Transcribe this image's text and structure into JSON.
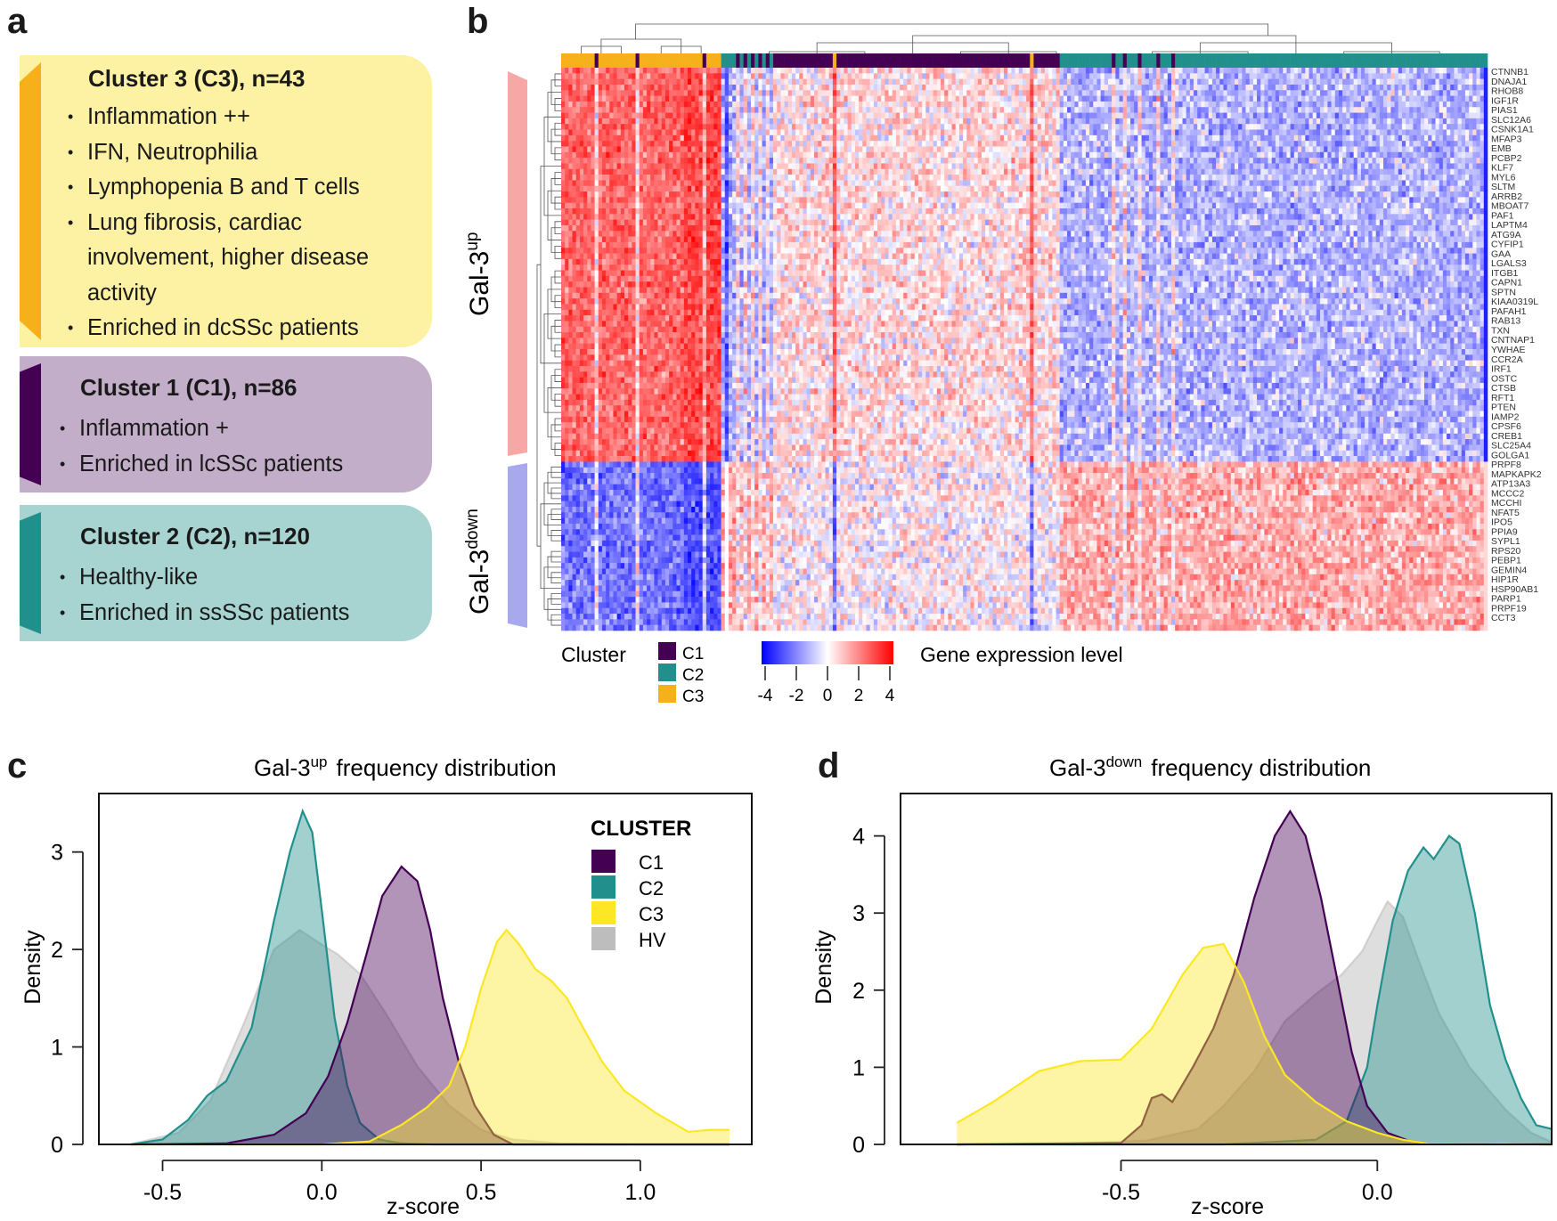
{
  "panel_labels": [
    "a",
    "b",
    "c",
    "d"
  ],
  "colors": {
    "c1": "#440154",
    "c2": "#21908c",
    "c3": "#fde725",
    "hv": "#bdbdbd",
    "card_c3": "#fdf2a4",
    "card_c1": "#c3aec9",
    "card_c2": "#a7d3d1",
    "strip_c3": "#f6b11a",
    "gal_up_bar": "#f7a8a6",
    "gal_down_bar": "#a8a8ef"
  },
  "panel_a": {
    "cards": [
      {
        "title": "Cluster 3 (C3), n=43",
        "lines": [
          {
            "text": "Inflammation ++",
            "bullet": true
          },
          {
            "text": "IFN, Neutrophilia",
            "bullet": true
          },
          {
            "text": "Lymphopenia B and T cells",
            "bullet": true
          },
          {
            "text": "Lung fibrosis, cardiac",
            "bullet": true
          },
          {
            "text": "involvement, higher disease",
            "bullet": false
          },
          {
            "text": "activity",
            "bullet": false
          },
          {
            "text": "Enriched in dcSSc patients",
            "bullet": true
          }
        ]
      },
      {
        "title": "Cluster 1 (C1), n=86",
        "lines": [
          {
            "text": "Inflammation +",
            "bullet": true
          },
          {
            "text": "Enriched in lcSSc patients",
            "bullet": true
          }
        ]
      },
      {
        "title": "Cluster 2 (C2), n=120",
        "lines": [
          {
            "text": "Healthy-like",
            "bullet": true
          },
          {
            "text": "Enriched in ssSSc patients",
            "bullet": true
          }
        ]
      }
    ]
  },
  "panel_b": {
    "gal_up_label": "Gal-3",
    "gal_up_sup": "up",
    "gal_down_label": "Gal-3",
    "gal_down_sup": "down",
    "genes": [
      "CTNNB1",
      "DNAJA1",
      "RHOB8",
      "IGF1R",
      "PIAS1",
      "SLC12A6",
      "CSNK1A1",
      "MFAP3",
      "EMB",
      "PCBP2",
      "KLF7",
      "MYL6",
      "SLTM",
      "ARRB2",
      "MBOAT7",
      "PAF1",
      "LAPTM4",
      "ATG9A",
      "CYFIP1",
      "GAA",
      "LGALS3",
      "ITGB1",
      "CAPN1",
      "SPTN",
      "KIAA0319L",
      "PAFAH1",
      "RAB13",
      "TXN",
      "CNTNAP1",
      "YWHAE",
      "CCR2A",
      "IRF1",
      "OSTC",
      "CTSB",
      "RFT1",
      "PTEN",
      "IAMP2",
      "CPSF6",
      "CREB1",
      "SLC25A4",
      "GOLGA1",
      "PRPF8",
      "MAPKAPK2",
      "ATP13A3",
      "MCCC2",
      "MCCHI",
      "NFAT5",
      "IPO5",
      "PPIA9",
      "SYPL1",
      "RPS20",
      "PEBP1",
      "GEMIN4",
      "HIP1R",
      "HSP90AB1",
      "PARP1",
      "PRPF19",
      "CCT3"
    ],
    "legend_cluster_title": "Cluster",
    "legend_clusters": [
      "C1",
      "C2",
      "C3"
    ],
    "legend_expr_title": "Gene expression level",
    "legend_expr_ticks": [
      "-4",
      "-2",
      "0",
      "2",
      "4"
    ]
  },
  "chart_data": [
    {
      "type": "heatmap",
      "panel": "b",
      "title": "",
      "row_groups": [
        "Gal-3up",
        "Gal-3down"
      ],
      "color_scale": {
        "min": -4,
        "max": 4,
        "colors": [
          "#0000ff",
          "#ffffff",
          "#ff0000"
        ]
      },
      "column_clusters_order": [
        "C3",
        "C1",
        "C2"
      ]
    },
    {
      "type": "area",
      "panel": "c",
      "title": "Gal-3up frequency distribution",
      "title_main": "Gal-3",
      "title_sup": "up",
      "title_rest": "frequency distribution",
      "xlabel": "z-score",
      "ylabel": "Density",
      "xlim": [
        -0.7,
        1.35
      ],
      "ylim": [
        0,
        3.6
      ],
      "xticks": [
        -0.5,
        0.0,
        0.5,
        1.0
      ],
      "xtick_labels": [
        "-0.5",
        "0.0",
        "0.5",
        "1.0"
      ],
      "yticks": [
        0,
        1,
        2,
        3
      ],
      "ytick_labels": [
        "0",
        "1",
        "2",
        "3"
      ],
      "legend_title": "CLUSTER",
      "legend": [
        "C1",
        "C2",
        "C3",
        "HV"
      ],
      "series": [
        {
          "name": "HV",
          "x": [
            -0.6,
            -0.45,
            -0.35,
            -0.25,
            -0.15,
            -0.07,
            0.0,
            0.05,
            0.12,
            0.2,
            0.3,
            0.4,
            0.5,
            0.6,
            0.75,
            1.0,
            1.28
          ],
          "y": [
            0,
            0.12,
            0.45,
            1.2,
            2.0,
            2.2,
            2.05,
            1.95,
            1.75,
            1.35,
            0.8,
            0.4,
            0.15,
            0.05,
            0.01,
            0,
            0
          ]
        },
        {
          "name": "C2",
          "x": [
            -0.6,
            -0.5,
            -0.42,
            -0.36,
            -0.3,
            -0.22,
            -0.15,
            -0.1,
            -0.06,
            -0.03,
            0.0,
            0.04,
            0.08,
            0.12,
            0.18,
            0.25,
            0.35,
            0.5,
            0.7,
            1.0,
            1.28
          ],
          "y": [
            0,
            0.05,
            0.25,
            0.5,
            0.65,
            1.2,
            2.3,
            3.0,
            3.42,
            3.2,
            2.4,
            1.3,
            0.6,
            0.22,
            0.05,
            0.01,
            0,
            0,
            0,
            0,
            0
          ]
        },
        {
          "name": "C1",
          "x": [
            -0.6,
            -0.3,
            -0.15,
            -0.05,
            0.02,
            0.08,
            0.14,
            0.19,
            0.25,
            0.3,
            0.34,
            0.38,
            0.43,
            0.48,
            0.54,
            0.6,
            0.8,
            1.28
          ],
          "y": [
            0,
            0.01,
            0.1,
            0.32,
            0.7,
            1.25,
            1.95,
            2.55,
            2.85,
            2.7,
            2.2,
            1.5,
            0.85,
            0.4,
            0.1,
            0,
            0,
            0
          ]
        },
        {
          "name": "C3",
          "x": [
            -0.6,
            0.0,
            0.15,
            0.25,
            0.33,
            0.4,
            0.45,
            0.5,
            0.55,
            0.58,
            0.62,
            0.67,
            0.72,
            0.77,
            0.82,
            0.88,
            0.95,
            1.05,
            1.15,
            1.22,
            1.28
          ],
          "y": [
            0,
            0,
            0.03,
            0.2,
            0.38,
            0.6,
            1.0,
            1.6,
            2.08,
            2.2,
            2.05,
            1.8,
            1.68,
            1.5,
            1.2,
            0.85,
            0.55,
            0.32,
            0.13,
            0.15,
            0.15
          ]
        }
      ]
    },
    {
      "type": "area",
      "panel": "d",
      "title": "Gal-3down frequency distribution",
      "title_main": "Gal-3",
      "title_sup": "down",
      "title_rest": "frequency distribution",
      "xlabel": "z-score",
      "ylabel": "Density",
      "xlim": [
        -0.93,
        0.34
      ],
      "ylim": [
        0,
        4.55
      ],
      "xticks": [
        -0.5,
        0.0
      ],
      "xtick_labels": [
        "-0.5",
        "0.0"
      ],
      "yticks": [
        0,
        1,
        2,
        3,
        4
      ],
      "ytick_labels": [
        "0",
        "1",
        "2",
        "3",
        "4"
      ],
      "series": [
        {
          "name": "HV",
          "x": [
            -0.82,
            -0.6,
            -0.45,
            -0.35,
            -0.3,
            -0.24,
            -0.18,
            -0.12,
            -0.07,
            -0.03,
            0.0,
            0.02,
            0.05,
            0.08,
            0.12,
            0.18,
            0.25,
            0.3,
            0.34
          ],
          "y": [
            0,
            0.01,
            0.05,
            0.2,
            0.5,
            0.95,
            1.6,
            1.95,
            2.2,
            2.5,
            2.9,
            3.15,
            2.95,
            2.4,
            1.7,
            1.0,
            0.45,
            0.15,
            0.03
          ]
        },
        {
          "name": "C2",
          "x": [
            -0.82,
            -0.3,
            -0.12,
            -0.06,
            -0.02,
            0.0,
            0.03,
            0.06,
            0.09,
            0.11,
            0.14,
            0.16,
            0.19,
            0.22,
            0.25,
            0.28,
            0.31,
            0.34
          ],
          "y": [
            0,
            0,
            0.06,
            0.3,
            1.0,
            1.8,
            2.9,
            3.55,
            3.85,
            3.7,
            4.0,
            3.9,
            3.0,
            1.8,
            1.1,
            0.6,
            0.25,
            0.2
          ]
        },
        {
          "name": "C1",
          "x": [
            -0.82,
            -0.5,
            -0.46,
            -0.44,
            -0.42,
            -0.4,
            -0.36,
            -0.32,
            -0.28,
            -0.24,
            -0.2,
            -0.17,
            -0.14,
            -0.11,
            -0.08,
            -0.05,
            -0.02,
            0.02,
            0.06,
            0.1,
            0.34
          ],
          "y": [
            0,
            0.02,
            0.25,
            0.6,
            0.65,
            0.55,
            1.0,
            1.5,
            2.2,
            3.2,
            4.0,
            4.32,
            4.0,
            3.2,
            2.2,
            1.2,
            0.5,
            0.15,
            0.05,
            0.01,
            0
          ]
        },
        {
          "name": "C3",
          "x": [
            -0.82,
            -0.75,
            -0.66,
            -0.58,
            -0.5,
            -0.44,
            -0.38,
            -0.34,
            -0.3,
            -0.26,
            -0.22,
            -0.18,
            -0.12,
            -0.06,
            0.0,
            0.05,
            0.1,
            0.34
          ],
          "y": [
            0.28,
            0.55,
            0.95,
            1.08,
            1.1,
            1.5,
            2.2,
            2.55,
            2.6,
            2.1,
            1.4,
            0.9,
            0.55,
            0.3,
            0.15,
            0.06,
            0.01,
            0
          ]
        }
      ]
    }
  ]
}
